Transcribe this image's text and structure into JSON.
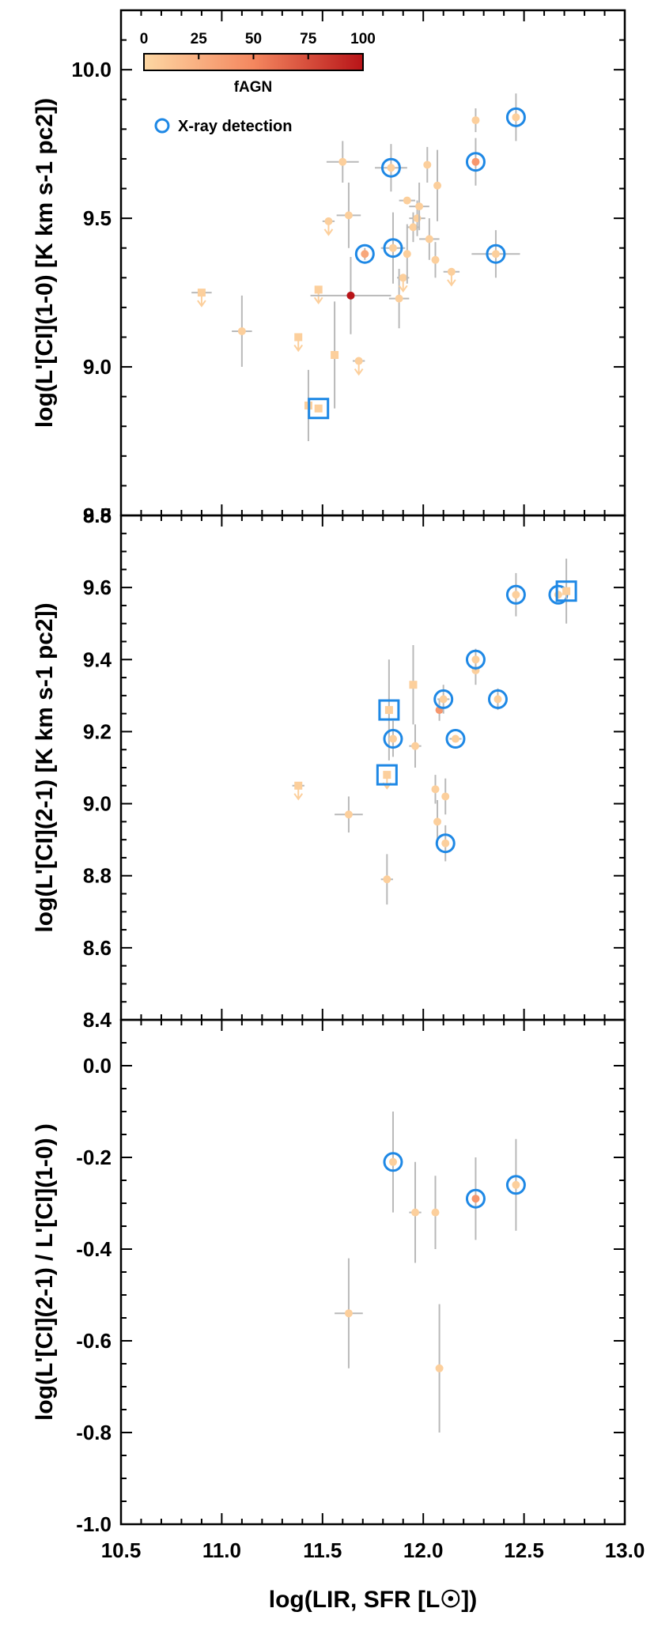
{
  "chart_data": [
    {
      "type": "scatter",
      "panel": "top",
      "ylabel": "log(L'[CI](1-0) [K km s-1 pc2])",
      "xlim": [
        10.5,
        13.0
      ],
      "ylim": [
        8.5,
        10.2
      ],
      "x_ticks": [
        "10.5",
        "11.0",
        "11.5",
        "12.0",
        "12.5",
        "13.0"
      ],
      "y_ticks": [
        {
          "value": 8.5,
          "label": "8.5"
        },
        {
          "value": 9.0,
          "label": "9.0"
        },
        {
          "value": 9.5,
          "label": "9.5"
        },
        {
          "value": 10.0,
          "label": "10.0"
        }
      ],
      "colorbar": {
        "label": "fAGN",
        "ticks": [
          "0",
          "25",
          "50",
          "75",
          "100"
        ],
        "color_low": "#fdd7a3",
        "color_high": "#b81418"
      },
      "legend": {
        "label": "X-ray detection",
        "marker_color": "#1e88e5",
        "position": "upper-left"
      },
      "points": [
        {
          "x": 10.9,
          "y": 9.25,
          "xerr": 0.05,
          "yerr": 0.0,
          "upper": true,
          "marker": "square",
          "fagn": 5,
          "xray": false
        },
        {
          "x": 11.1,
          "y": 9.12,
          "xerr": 0.05,
          "yerr": 0.12,
          "upper": false,
          "marker": "circle",
          "fagn": 5,
          "xray": false
        },
        {
          "x": 11.38,
          "y": 9.1,
          "xerr": 0.0,
          "yerr": 0.0,
          "upper": true,
          "marker": "square",
          "fagn": 5,
          "xray": false
        },
        {
          "x": 11.43,
          "y": 8.87,
          "xerr": 0.0,
          "yerr": 0.12,
          "upper": false,
          "marker": "square",
          "fagn": 5,
          "xray": false
        },
        {
          "x": 11.48,
          "y": 8.86,
          "xerr": 0.0,
          "yerr": 0.0,
          "upper": false,
          "marker": "square",
          "fagn": 5,
          "xray": true
        },
        {
          "x": 11.48,
          "y": 9.26,
          "xerr": 0.0,
          "yerr": 0.0,
          "upper": true,
          "marker": "square",
          "fagn": 5,
          "xray": false
        },
        {
          "x": 11.53,
          "y": 9.49,
          "xerr": 0.03,
          "yerr": 0.0,
          "upper": true,
          "marker": "circle",
          "fagn": 5,
          "xray": false
        },
        {
          "x": 11.56,
          "y": 9.04,
          "xerr": 0.0,
          "yerr": 0.18,
          "upper": false,
          "marker": "square",
          "fagn": 5,
          "xray": false
        },
        {
          "x": 11.6,
          "y": 9.69,
          "xerr": 0.08,
          "yerr": 0.07,
          "upper": false,
          "marker": "circle",
          "fagn": 5,
          "xray": false
        },
        {
          "x": 11.63,
          "y": 9.51,
          "xerr": 0.06,
          "yerr": 0.11,
          "upper": false,
          "marker": "circle",
          "fagn": 5,
          "xray": false
        },
        {
          "x": 11.64,
          "y": 9.24,
          "xerr": 0.2,
          "yerr": 0.13,
          "upper": false,
          "marker": "circle",
          "fagn": 100,
          "xray": false
        },
        {
          "x": 11.68,
          "y": 9.02,
          "xerr": 0.03,
          "yerr": 0.0,
          "upper": true,
          "marker": "circle",
          "fagn": 5,
          "xray": false
        },
        {
          "x": 11.71,
          "y": 9.38,
          "xerr": 0.0,
          "yerr": 0.02,
          "upper": false,
          "marker": "circle",
          "fagn": 30,
          "xray": true
        },
        {
          "x": 11.84,
          "y": 9.67,
          "xerr": 0.08,
          "yerr": 0.08,
          "upper": false,
          "marker": "circle",
          "fagn": 5,
          "xray": true
        },
        {
          "x": 11.85,
          "y": 9.4,
          "xerr": 0.06,
          "yerr": 0.12,
          "upper": false,
          "marker": "circle",
          "fagn": 5,
          "xray": true
        },
        {
          "x": 11.88,
          "y": 9.23,
          "xerr": 0.05,
          "yerr": 0.1,
          "upper": false,
          "marker": "circle",
          "fagn": 5,
          "xray": false
        },
        {
          "x": 11.9,
          "y": 9.3,
          "xerr": 0.03,
          "yerr": 0.0,
          "upper": true,
          "marker": "circle",
          "fagn": 5,
          "xray": false
        },
        {
          "x": 11.92,
          "y": 9.56,
          "xerr": 0.04,
          "yerr": 0.0,
          "upper": false,
          "marker": "circle",
          "fagn": 5,
          "xray": false
        },
        {
          "x": 11.92,
          "y": 9.38,
          "xerr": 0.0,
          "yerr": 0.1,
          "upper": false,
          "marker": "circle",
          "fagn": 5,
          "xray": false
        },
        {
          "x": 11.95,
          "y": 9.47,
          "xerr": 0.03,
          "yerr": 0.05,
          "upper": false,
          "marker": "circle",
          "fagn": 5,
          "xray": false
        },
        {
          "x": 11.97,
          "y": 9.5,
          "xerr": 0.04,
          "yerr": 0.06,
          "upper": false,
          "marker": "circle",
          "fagn": 5,
          "xray": false
        },
        {
          "x": 11.98,
          "y": 9.54,
          "xerr": 0.05,
          "yerr": 0.08,
          "upper": false,
          "marker": "circle",
          "fagn": 5,
          "xray": false
        },
        {
          "x": 12.02,
          "y": 9.68,
          "xerr": 0.0,
          "yerr": 0.06,
          "upper": false,
          "marker": "circle",
          "fagn": 5,
          "xray": false
        },
        {
          "x": 12.03,
          "y": 9.43,
          "xerr": 0.05,
          "yerr": 0.07,
          "upper": false,
          "marker": "circle",
          "fagn": 5,
          "xray": false
        },
        {
          "x": 12.06,
          "y": 9.36,
          "xerr": 0.0,
          "yerr": 0.06,
          "upper": false,
          "marker": "circle",
          "fagn": 5,
          "xray": false
        },
        {
          "x": 12.07,
          "y": 9.61,
          "xerr": 0.0,
          "yerr": 0.12,
          "upper": false,
          "marker": "circle",
          "fagn": 5,
          "xray": false
        },
        {
          "x": 12.14,
          "y": 9.32,
          "xerr": 0.04,
          "yerr": 0.0,
          "upper": true,
          "marker": "circle",
          "fagn": 5,
          "xray": false
        },
        {
          "x": 12.26,
          "y": 9.83,
          "xerr": 0.0,
          "yerr": 0.04,
          "upper": false,
          "marker": "circle",
          "fagn": 5,
          "xray": false
        },
        {
          "x": 12.26,
          "y": 9.69,
          "xerr": 0.0,
          "yerr": 0.08,
          "upper": false,
          "marker": "circle",
          "fagn": 40,
          "xray": true
        },
        {
          "x": 12.36,
          "y": 9.38,
          "xerr": 0.12,
          "yerr": 0.08,
          "upper": false,
          "marker": "circle",
          "fagn": 5,
          "xray": true
        },
        {
          "x": 12.46,
          "y": 9.84,
          "xerr": 0.0,
          "yerr": 0.08,
          "upper": false,
          "marker": "circle",
          "fagn": 5,
          "xray": true
        }
      ]
    },
    {
      "type": "scatter",
      "panel": "middle",
      "ylabel": "log(L'[CI](2-1) [K km s-1 pc2])",
      "xlim": [
        10.5,
        13.0
      ],
      "ylim": [
        8.4,
        9.8
      ],
      "y_ticks": [
        {
          "value": 8.4,
          "label": "8.4"
        },
        {
          "value": 8.6,
          "label": "8.6"
        },
        {
          "value": 8.8,
          "label": "8.8"
        },
        {
          "value": 9.0,
          "label": "9.0"
        },
        {
          "value": 9.2,
          "label": "9.2"
        },
        {
          "value": 9.4,
          "label": "9.4"
        },
        {
          "value": 9.6,
          "label": "9.6"
        },
        {
          "value": 9.8,
          "label": "9.8"
        }
      ],
      "points": [
        {
          "x": 11.38,
          "y": 9.05,
          "xerr": 0.03,
          "yerr": 0.0,
          "upper": true,
          "marker": "square",
          "fagn": 5,
          "xray": false
        },
        {
          "x": 11.63,
          "y": 8.97,
          "xerr": 0.07,
          "yerr": 0.05,
          "upper": false,
          "marker": "circle",
          "fagn": 5,
          "xray": false
        },
        {
          "x": 11.82,
          "y": 8.79,
          "xerr": 0.03,
          "yerr": 0.07,
          "upper": false,
          "marker": "circle",
          "fagn": 5,
          "xray": false
        },
        {
          "x": 11.82,
          "y": 9.08,
          "xerr": 0.0,
          "yerr": 0.0,
          "upper": true,
          "marker": "square",
          "fagn": 5,
          "xray": true
        },
        {
          "x": 11.83,
          "y": 9.26,
          "xerr": 0.0,
          "yerr": 0.14,
          "upper": false,
          "marker": "square",
          "fagn": 5,
          "xray": true
        },
        {
          "x": 11.85,
          "y": 9.18,
          "xerr": 0.0,
          "yerr": 0.05,
          "upper": false,
          "marker": "circle",
          "fagn": 5,
          "xray": true
        },
        {
          "x": 11.95,
          "y": 9.33,
          "xerr": 0.0,
          "yerr": 0.11,
          "upper": false,
          "marker": "square",
          "fagn": 5,
          "xray": false
        },
        {
          "x": 11.96,
          "y": 9.16,
          "xerr": 0.03,
          "yerr": 0.06,
          "upper": false,
          "marker": "circle",
          "fagn": 5,
          "xray": false
        },
        {
          "x": 12.06,
          "y": 9.04,
          "xerr": 0.0,
          "yerr": 0.04,
          "upper": false,
          "marker": "circle",
          "fagn": 5,
          "xray": false
        },
        {
          "x": 12.07,
          "y": 8.95,
          "xerr": 0.0,
          "yerr": 0.06,
          "upper": false,
          "marker": "circle",
          "fagn": 5,
          "xray": false
        },
        {
          "x": 12.08,
          "y": 9.26,
          "xerr": 0.0,
          "yerr": 0.03,
          "upper": false,
          "marker": "circle",
          "fagn": 40,
          "xray": false
        },
        {
          "x": 12.1,
          "y": 9.29,
          "xerr": 0.03,
          "yerr": 0.04,
          "upper": false,
          "marker": "circle",
          "fagn": 5,
          "xray": true
        },
        {
          "x": 12.11,
          "y": 9.02,
          "xerr": 0.0,
          "yerr": 0.05,
          "upper": false,
          "marker": "circle",
          "fagn": 5,
          "xray": false
        },
        {
          "x": 12.11,
          "y": 8.89,
          "xerr": 0.0,
          "yerr": 0.05,
          "upper": false,
          "marker": "circle",
          "fagn": 5,
          "xray": true
        },
        {
          "x": 12.16,
          "y": 9.18,
          "xerr": 0.03,
          "yerr": 0.0,
          "upper": false,
          "marker": "circle",
          "fagn": 5,
          "xray": true
        },
        {
          "x": 12.26,
          "y": 9.37,
          "xerr": 0.0,
          "yerr": 0.04,
          "upper": false,
          "marker": "circle",
          "fagn": 5,
          "xray": false
        },
        {
          "x": 12.26,
          "y": 9.4,
          "xerr": 0.0,
          "yerr": 0.03,
          "upper": false,
          "marker": "circle",
          "fagn": 5,
          "xray": true
        },
        {
          "x": 12.37,
          "y": 9.29,
          "xerr": 0.0,
          "yerr": 0.03,
          "upper": false,
          "marker": "circle",
          "fagn": 5,
          "xray": true
        },
        {
          "x": 12.46,
          "y": 9.58,
          "xerr": 0.0,
          "yerr": 0.06,
          "upper": false,
          "marker": "circle",
          "fagn": 5,
          "xray": true
        },
        {
          "x": 12.67,
          "y": 9.58,
          "xerr": 0.0,
          "yerr": 0.0,
          "upper": false,
          "marker": "circle",
          "fagn": 5,
          "xray": true
        },
        {
          "x": 12.71,
          "y": 9.59,
          "xerr": 0.0,
          "yerr": 0.09,
          "upper": false,
          "marker": "square",
          "fagn": 5,
          "xray": true
        }
      ]
    },
    {
      "type": "scatter",
      "panel": "bottom",
      "ylabel": "log(L'[CI](2-1) / L'[CI](1-0) )",
      "xlabel": "log(LIR, SFR [L☉])",
      "xlim": [
        10.5,
        13.0
      ],
      "ylim": [
        -1.0,
        0.1
      ],
      "y_ticks": [
        {
          "value": -1.0,
          "label": "-1.0"
        },
        {
          "value": -0.8,
          "label": "-0.8"
        },
        {
          "value": -0.6,
          "label": "-0.6"
        },
        {
          "value": -0.4,
          "label": "-0.4"
        },
        {
          "value": -0.2,
          "label": "-0.2"
        },
        {
          "value": 0.0,
          "label": "0.0"
        }
      ],
      "points": [
        {
          "x": 11.63,
          "y": -0.54,
          "xerr": 0.07,
          "yerr": 0.12,
          "upper": false,
          "marker": "circle",
          "fagn": 5,
          "xray": false
        },
        {
          "x": 11.85,
          "y": -0.21,
          "xerr": 0.0,
          "yerr": 0.11,
          "upper": false,
          "marker": "circle",
          "fagn": 5,
          "xray": true
        },
        {
          "x": 11.96,
          "y": -0.32,
          "xerr": 0.03,
          "yerr": 0.11,
          "upper": false,
          "marker": "circle",
          "fagn": 5,
          "xray": false
        },
        {
          "x": 12.06,
          "y": -0.32,
          "xerr": 0.0,
          "yerr": 0.08,
          "upper": false,
          "marker": "circle",
          "fagn": 5,
          "xray": false
        },
        {
          "x": 12.08,
          "y": -0.66,
          "xerr": 0.0,
          "yerr": 0.14,
          "upper": false,
          "marker": "circle",
          "fagn": 5,
          "xray": false
        },
        {
          "x": 12.26,
          "y": -0.29,
          "xerr": 0.0,
          "yerr": 0.09,
          "upper": false,
          "marker": "circle",
          "fagn": 40,
          "xray": true
        },
        {
          "x": 12.46,
          "y": -0.26,
          "xerr": 0.0,
          "yerr": 0.1,
          "upper": false,
          "marker": "circle",
          "fagn": 5,
          "xray": true
        }
      ]
    }
  ]
}
